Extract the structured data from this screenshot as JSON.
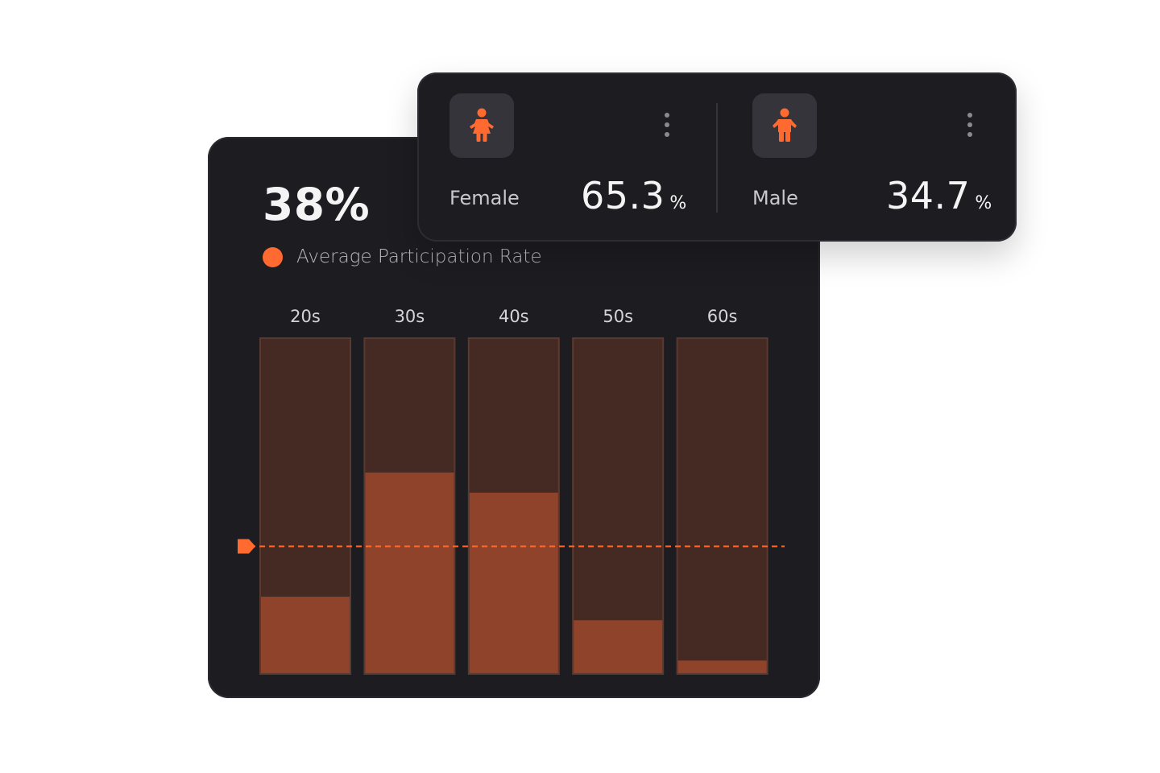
{
  "summary": {
    "value": "38%",
    "legend_label": "Average Participation Rate"
  },
  "gender": [
    {
      "label": "Female",
      "value": "65.3",
      "unit": "%",
      "icon": "female-person-icon"
    },
    {
      "label": "Male",
      "value": "34.7",
      "unit": "%",
      "icon": "male-person-icon"
    }
  ],
  "colors": {
    "accent": "#ff6a30",
    "bar_fill": "#8f432b",
    "bar_track": "#452a24",
    "card_bg": "#1c1c21"
  },
  "chart_data": {
    "type": "bar",
    "categories": [
      "20s",
      "30s",
      "40s",
      "50s",
      "60s"
    ],
    "values": [
      23,
      60,
      54,
      16,
      4
    ],
    "average": 38,
    "ylim": [
      0,
      100
    ],
    "title": "",
    "xlabel": "",
    "ylabel": ""
  }
}
